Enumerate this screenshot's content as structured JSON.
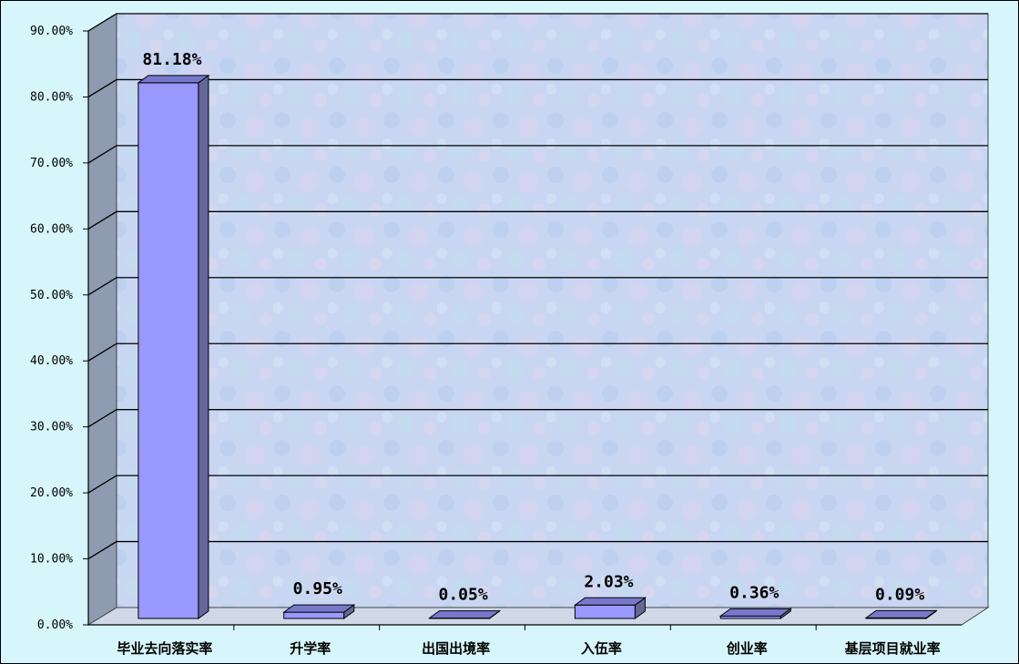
{
  "chart_data": {
    "type": "bar",
    "categories": [
      "毕业去向落实率",
      "升学率",
      "出国出境率",
      "入伍率",
      "创业率",
      "基层项目就业率"
    ],
    "values": [
      81.18,
      0.95,
      0.05,
      2.03,
      0.36,
      0.09
    ],
    "data_labels": [
      "81.18%",
      "0.95%",
      "0.05%",
      "2.03%",
      "0.36%",
      "0.09%"
    ],
    "y_ticks": [
      0,
      10,
      20,
      30,
      40,
      50,
      60,
      70,
      80,
      90
    ],
    "y_tick_labels": [
      "0.00%",
      "10.00%",
      "20.00%",
      "30.00%",
      "40.00%",
      "50.00%",
      "60.00%",
      "70.00%",
      "80.00%",
      "90.00%"
    ],
    "ylim": [
      0,
      90
    ],
    "grid": true,
    "legend": "none",
    "style": "3d-bar",
    "title": "",
    "xlabel": "",
    "ylabel": ""
  },
  "colors": {
    "background": "#d7f6fb",
    "plot_wall": "#c8d8f0",
    "side_wall": "#8e9bb0",
    "floor": "#d0d8e8",
    "bar_front": "#9999ff",
    "bar_side": "#666699",
    "bar_top": "#7777cc",
    "gridline": "#000000"
  }
}
